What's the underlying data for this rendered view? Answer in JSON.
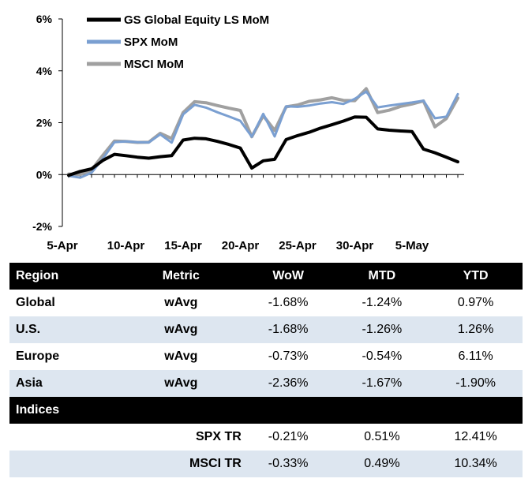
{
  "chart_data": {
    "type": "line",
    "title": "",
    "xlabel": "",
    "ylabel": "",
    "ylim": [
      -2,
      6
    ],
    "yticks": [
      "-2%",
      "0%",
      "2%",
      "4%",
      "6%"
    ],
    "ytick_values": [
      -2,
      0,
      2,
      4,
      6
    ],
    "xlim": [
      0,
      34
    ],
    "xtick_labels": [
      "5-Apr",
      "10-Apr",
      "15-Apr",
      "20-Apr",
      "25-Apr",
      "30-Apr",
      "5-May"
    ],
    "xtick_positions": [
      0,
      5,
      10,
      15,
      20,
      25,
      30
    ],
    "legend_position": "top-center",
    "series": [
      {
        "name": "GS Global Equity LS MoM",
        "color": "#000000",
        "x": [
          0,
          1,
          2,
          3,
          4,
          5,
          6,
          7,
          8,
          9,
          10,
          11,
          12,
          13,
          14,
          15,
          16,
          17,
          18,
          19,
          20,
          21,
          22,
          23,
          24,
          25,
          26,
          27,
          28,
          29,
          30,
          31,
          32,
          33,
          34
        ],
        "values": [
          -0.03,
          0.12,
          0.22,
          0.55,
          0.78,
          0.73,
          0.67,
          0.63,
          0.69,
          0.73,
          1.33,
          1.4,
          1.38,
          1.28,
          1.16,
          1.02,
          0.25,
          0.53,
          0.59,
          1.35,
          1.5,
          1.63,
          1.79,
          1.92,
          2.06,
          2.22,
          2.21,
          1.76,
          1.71,
          1.68,
          1.66,
          0.98,
          0.84,
          0.67,
          0.49
        ]
      },
      {
        "name": "SPX MoM",
        "color": "#7a9fd1",
        "x": [
          0,
          1,
          2,
          3,
          4,
          5,
          6,
          7,
          8,
          9,
          10,
          11,
          12,
          13,
          14,
          15,
          16,
          17,
          18,
          19,
          20,
          21,
          22,
          23,
          24,
          25,
          26,
          27,
          28,
          29,
          30,
          31,
          32,
          33,
          34
        ],
        "values": [
          -0.05,
          -0.12,
          0.07,
          0.62,
          1.25,
          1.28,
          1.25,
          1.24,
          1.55,
          1.23,
          2.32,
          2.69,
          2.58,
          2.4,
          2.24,
          2.07,
          1.46,
          2.34,
          1.47,
          2.63,
          2.61,
          2.66,
          2.74,
          2.79,
          2.72,
          2.92,
          3.2,
          2.59,
          2.66,
          2.72,
          2.78,
          2.85,
          2.17,
          2.23,
          3.1
        ]
      },
      {
        "name": "MSCI MoM",
        "color": "#a0a0a0",
        "x": [
          0,
          1,
          2,
          3,
          4,
          5,
          6,
          7,
          8,
          9,
          10,
          11,
          12,
          13,
          14,
          15,
          16,
          17,
          18,
          19,
          20,
          21,
          22,
          23,
          24,
          25,
          26,
          27,
          28,
          29,
          30,
          31,
          32,
          33,
          34
        ],
        "values": [
          0.02,
          0.0,
          0.18,
          0.75,
          1.29,
          1.28,
          1.24,
          1.25,
          1.59,
          1.39,
          2.39,
          2.81,
          2.77,
          2.66,
          2.56,
          2.47,
          1.46,
          2.27,
          1.7,
          2.61,
          2.68,
          2.82,
          2.88,
          2.96,
          2.86,
          2.85,
          3.31,
          2.39,
          2.48,
          2.63,
          2.72,
          2.84,
          1.84,
          2.16,
          2.95
        ]
      }
    ]
  },
  "table": {
    "headers": [
      "Region",
      "Metric",
      "WoW",
      "MTD",
      "YTD"
    ],
    "rows": [
      {
        "region": "Global",
        "metric": "wAvg",
        "wow": "-1.68%",
        "mtd": "-1.24%",
        "ytd": "0.97%"
      },
      {
        "region": "U.S.",
        "metric": "wAvg",
        "wow": "-1.68%",
        "mtd": "-1.26%",
        "ytd": "1.26%"
      },
      {
        "region": "Europe",
        "metric": "wAvg",
        "wow": "-0.73%",
        "mtd": "-0.54%",
        "ytd": "6.11%"
      },
      {
        "region": "Asia",
        "metric": "wAvg",
        "wow": "-2.36%",
        "mtd": "-1.67%",
        "ytd": "-1.90%"
      }
    ],
    "indices_header": "Indices",
    "indices_rows": [
      {
        "metric": "SPX TR",
        "wow": "-0.21%",
        "mtd": "0.51%",
        "ytd": "12.41%"
      },
      {
        "metric": "MSCI TR",
        "wow": "-0.33%",
        "mtd": "0.49%",
        "ytd": "10.34%"
      }
    ]
  }
}
